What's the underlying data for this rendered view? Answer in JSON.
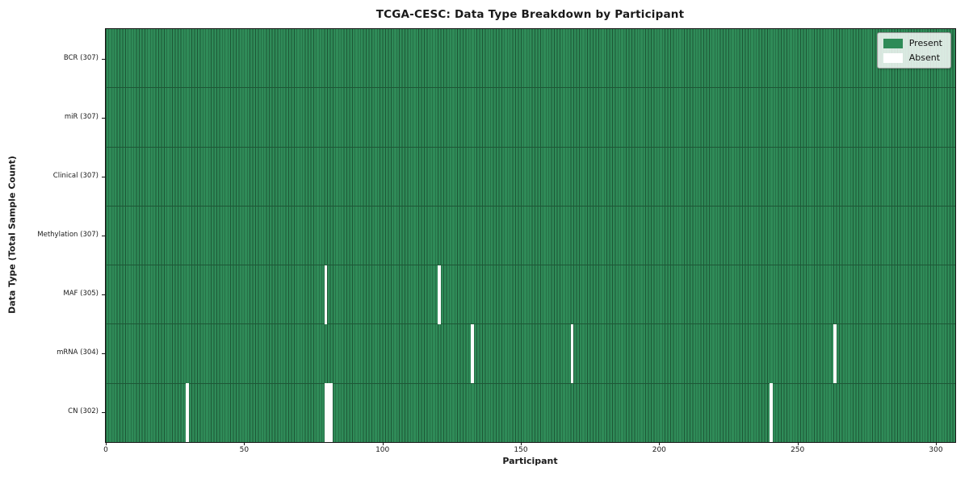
{
  "chart_data": {
    "type": "heatmap",
    "title": "TCGA-CESC: Data Type Breakdown by Participant",
    "xlabel": "Participant",
    "ylabel": "Data Type (Total Sample Count)",
    "x_ticks": [
      0,
      50,
      100,
      150,
      200,
      250,
      300
    ],
    "x_max": 307,
    "grid": false,
    "legend_position": "upper right",
    "rows": [
      {
        "label": "BCR (307)",
        "present_count": 307,
        "absent_participants": []
      },
      {
        "label": "miR (307)",
        "present_count": 307,
        "absent_participants": []
      },
      {
        "label": "Clinical (307)",
        "present_count": 307,
        "absent_participants": []
      },
      {
        "label": "Methylation (307)",
        "present_count": 307,
        "absent_participants": []
      },
      {
        "label": "MAF (305)",
        "present_count": 305,
        "absent_participants": [
          79,
          120
        ]
      },
      {
        "label": "mRNA (304)",
        "present_count": 304,
        "absent_participants": [
          132,
          168,
          263
        ]
      },
      {
        "label": "CN (302)",
        "present_count": 302,
        "absent_participants": [
          29,
          79,
          80,
          81,
          240
        ]
      }
    ],
    "legend": [
      {
        "label": "Present",
        "color": "#2e8b57"
      },
      {
        "label": "Absent",
        "color": "#ffffff"
      }
    ],
    "colors": {
      "present_fill": "#2f8b58",
      "cell_edge": "#1d5736",
      "absent_fill": "#fdfdfd",
      "spine": "#161616"
    }
  }
}
